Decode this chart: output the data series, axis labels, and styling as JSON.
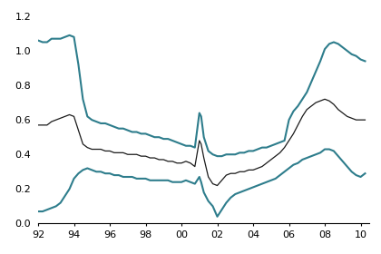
{
  "xlim": [
    1992,
    2010.5
  ],
  "ylim": [
    0.0,
    1.25
  ],
  "xticks": [
    1992,
    1994,
    1996,
    1998,
    2000,
    2002,
    2004,
    2006,
    2008,
    2010
  ],
  "xticklabels": [
    "92",
    "94",
    "96",
    "98",
    "00",
    "02",
    "04",
    "06",
    "08",
    "10"
  ],
  "yticks": [
    0.0,
    0.2,
    0.4,
    0.6,
    0.8,
    1.0,
    1.2
  ],
  "teal_color": "#2e7d8c",
  "black_color": "#1a1a1a",
  "linewidth_teal": 1.5,
  "linewidth_black": 0.9,
  "years": [
    1992.0,
    1992.25,
    1992.5,
    1992.75,
    1993.0,
    1993.25,
    1993.5,
    1993.75,
    1994.0,
    1994.25,
    1994.5,
    1994.75,
    1995.0,
    1995.25,
    1995.5,
    1995.75,
    1996.0,
    1996.25,
    1996.5,
    1996.75,
    1997.0,
    1997.25,
    1997.5,
    1997.75,
    1998.0,
    1998.25,
    1998.5,
    1998.75,
    1999.0,
    1999.25,
    1999.5,
    1999.75,
    2000.0,
    2000.25,
    2000.5,
    2000.75,
    2001.0,
    2001.1,
    2001.25,
    2001.5,
    2001.75,
    2002.0,
    2002.25,
    2002.5,
    2002.75,
    2003.0,
    2003.25,
    2003.5,
    2003.75,
    2004.0,
    2004.25,
    2004.5,
    2004.75,
    2005.0,
    2005.25,
    2005.5,
    2005.75,
    2006.0,
    2006.25,
    2006.5,
    2006.75,
    2007.0,
    2007.25,
    2007.5,
    2007.75,
    2008.0,
    2008.25,
    2008.5,
    2008.75,
    2009.0,
    2009.25,
    2009.5,
    2009.75,
    2010.0,
    2010.25
  ],
  "upper_teal": [
    1.06,
    1.05,
    1.05,
    1.07,
    1.07,
    1.07,
    1.08,
    1.09,
    1.08,
    0.92,
    0.72,
    0.62,
    0.6,
    0.59,
    0.58,
    0.58,
    0.57,
    0.56,
    0.55,
    0.55,
    0.54,
    0.53,
    0.53,
    0.52,
    0.52,
    0.51,
    0.5,
    0.5,
    0.49,
    0.49,
    0.48,
    0.47,
    0.46,
    0.45,
    0.45,
    0.44,
    0.64,
    0.62,
    0.5,
    0.42,
    0.4,
    0.39,
    0.39,
    0.4,
    0.4,
    0.4,
    0.41,
    0.41,
    0.42,
    0.42,
    0.43,
    0.44,
    0.44,
    0.45,
    0.46,
    0.47,
    0.48,
    0.6,
    0.65,
    0.68,
    0.72,
    0.76,
    0.82,
    0.88,
    0.94,
    1.01,
    1.04,
    1.05,
    1.04,
    1.02,
    1.0,
    0.98,
    0.97,
    0.95,
    0.94
  ],
  "lower_teal": [
    0.07,
    0.07,
    0.08,
    0.09,
    0.1,
    0.12,
    0.16,
    0.2,
    0.26,
    0.29,
    0.31,
    0.32,
    0.31,
    0.3,
    0.3,
    0.29,
    0.29,
    0.28,
    0.28,
    0.27,
    0.27,
    0.27,
    0.26,
    0.26,
    0.26,
    0.25,
    0.25,
    0.25,
    0.25,
    0.25,
    0.24,
    0.24,
    0.24,
    0.25,
    0.24,
    0.23,
    0.27,
    0.24,
    0.18,
    0.13,
    0.1,
    0.04,
    0.08,
    0.12,
    0.15,
    0.17,
    0.18,
    0.19,
    0.2,
    0.21,
    0.22,
    0.23,
    0.24,
    0.25,
    0.26,
    0.28,
    0.3,
    0.32,
    0.34,
    0.35,
    0.37,
    0.38,
    0.39,
    0.4,
    0.41,
    0.43,
    0.43,
    0.42,
    0.39,
    0.36,
    0.33,
    0.3,
    0.28,
    0.27,
    0.29
  ],
  "middle_black": [
    0.57,
    0.57,
    0.57,
    0.59,
    0.6,
    0.61,
    0.62,
    0.63,
    0.62,
    0.54,
    0.46,
    0.44,
    0.43,
    0.43,
    0.43,
    0.42,
    0.42,
    0.41,
    0.41,
    0.41,
    0.4,
    0.4,
    0.4,
    0.39,
    0.39,
    0.38,
    0.38,
    0.37,
    0.37,
    0.36,
    0.36,
    0.35,
    0.35,
    0.36,
    0.35,
    0.33,
    0.48,
    0.46,
    0.38,
    0.27,
    0.23,
    0.22,
    0.25,
    0.28,
    0.29,
    0.29,
    0.3,
    0.3,
    0.31,
    0.31,
    0.32,
    0.33,
    0.35,
    0.37,
    0.39,
    0.41,
    0.44,
    0.48,
    0.52,
    0.57,
    0.62,
    0.66,
    0.68,
    0.7,
    0.71,
    0.72,
    0.71,
    0.69,
    0.66,
    0.64,
    0.62,
    0.61,
    0.6,
    0.6,
    0.6
  ]
}
